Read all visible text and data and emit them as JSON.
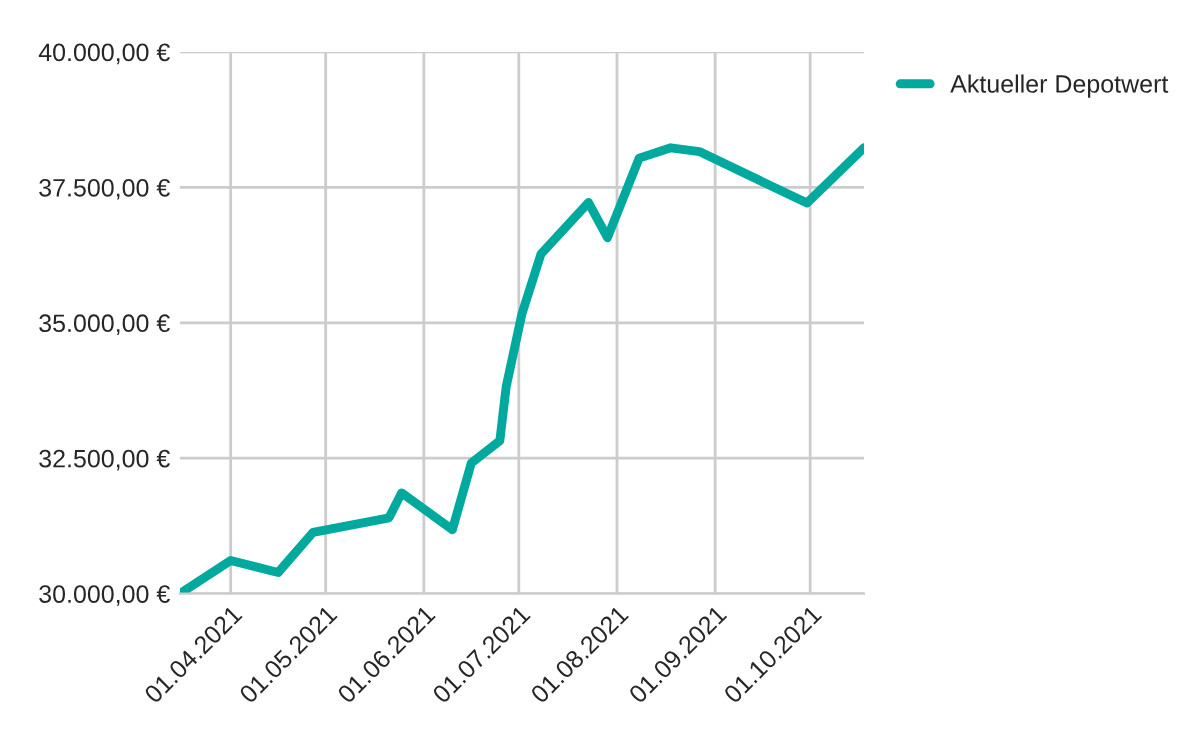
{
  "chart_data": {
    "type": "line",
    "x": [
      "2021-03-16",
      "2021-04-01",
      "2021-04-16",
      "2021-04-27",
      "2021-05-21",
      "2021-05-25",
      "2021-06-10",
      "2021-06-16",
      "2021-06-25",
      "2021-06-27",
      "2021-07-02",
      "2021-07-08",
      "2021-07-23",
      "2021-07-29",
      "2021-08-08",
      "2021-08-18",
      "2021-08-27",
      "2021-09-30",
      "2021-10-18"
    ],
    "series": [
      {
        "name": "Aktueller Depotwert",
        "color": "#00a99d",
        "values": [
          30000,
          30610,
          30390,
          31130,
          31400,
          31860,
          31180,
          32410,
          32820,
          33820,
          35170,
          36270,
          37220,
          36570,
          38040,
          38230,
          38160,
          37210,
          38230
        ]
      }
    ],
    "xlim": [
      "2021-03-16",
      "2021-10-18"
    ],
    "xticks": [
      {
        "value": "2021-04-01",
        "label": "01.04.2021"
      },
      {
        "value": "2021-05-01",
        "label": "01.05.2021"
      },
      {
        "value": "2021-06-01",
        "label": "01.06.2021"
      },
      {
        "value": "2021-07-01",
        "label": "01.07.2021"
      },
      {
        "value": "2021-08-01",
        "label": "01.08.2021"
      },
      {
        "value": "2021-09-01",
        "label": "01.09.2021"
      },
      {
        "value": "2021-10-01",
        "label": "01.10.2021"
      }
    ],
    "ylim": [
      30000,
      40000
    ],
    "yticks": [
      {
        "value": 30000,
        "label": "30.000,00 €"
      },
      {
        "value": 32500,
        "label": "32.500,00 €"
      },
      {
        "value": 35000,
        "label": "35.000,00 €"
      },
      {
        "value": 37500,
        "label": "37.500,00 €"
      },
      {
        "value": 40000,
        "label": "40.000,00 €"
      }
    ],
    "grid": true,
    "legend": "top right",
    "marker": "none",
    "line_style": "solid"
  }
}
